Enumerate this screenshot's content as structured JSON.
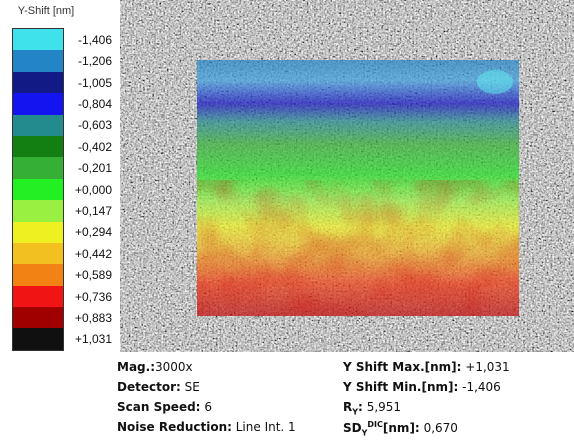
{
  "legend": {
    "title": "Y-Shift [nm]",
    "entries": [
      {
        "label": "-1,406",
        "color": "#3fe2ea"
      },
      {
        "label": "-1,206",
        "color": "#2384c6"
      },
      {
        "label": "-1,005",
        "color": "#121a86"
      },
      {
        "label": "-0,804",
        "color": "#1414f0"
      },
      {
        "label": "-0,603",
        "color": "#238a8e"
      },
      {
        "label": "-0,402",
        "color": "#137f13"
      },
      {
        "label": "-0,201",
        "color": "#35b035"
      },
      {
        "label": "+0,000",
        "color": "#22f022"
      },
      {
        "label": "+0,147",
        "color": "#9af040"
      },
      {
        "label": "+0,294",
        "color": "#eef022"
      },
      {
        "label": "+0,442",
        "color": "#f2c020"
      },
      {
        "label": "+0,589",
        "color": "#f28214"
      },
      {
        "label": "+0,736",
        "color": "#f01414"
      },
      {
        "label": "+0,883",
        "color": "#a00000"
      },
      {
        "label": "+1,031",
        "color": "#101010"
      }
    ]
  },
  "info": {
    "left": [
      {
        "label": "Mag.:",
        "value": "3000x"
      },
      {
        "label": "Detector:",
        "value": "SE"
      },
      {
        "label": "Scan Speed:",
        "value": "6"
      },
      {
        "label": "Noise Reduction:",
        "value": "Line Int. 1"
      }
    ],
    "right": [
      {
        "label": "Y Shift Max.[nm]:",
        "value": "+1,031"
      },
      {
        "label": "Y Shift Min.[nm]:",
        "value": "-1,406"
      },
      {
        "label_parts": [
          "R",
          "Y",
          ":"
        ],
        "value": "5,951"
      },
      {
        "label_parts": [
          "SD",
          "Y",
          "DIC",
          "[nm]:"
        ],
        "value": "0,670"
      }
    ]
  }
}
